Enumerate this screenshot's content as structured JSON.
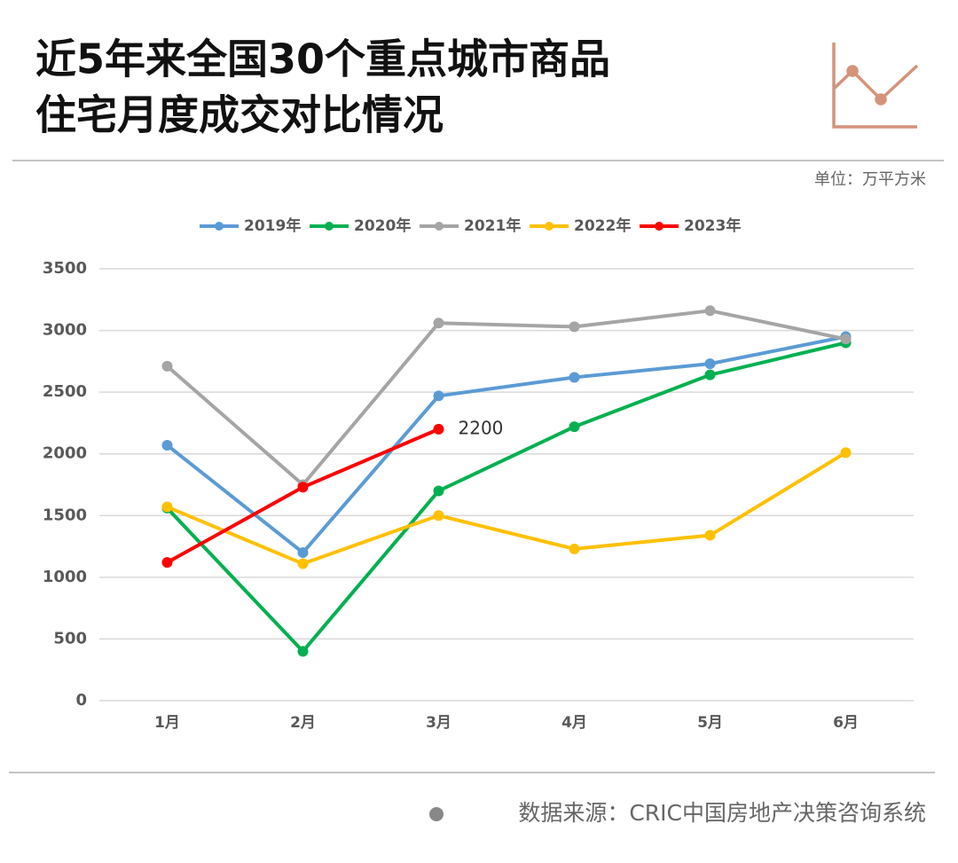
{
  "chart_data": {
    "type": "line",
    "title": [
      "近5年来全国30个重点城市商品",
      "住宅月度成交对比情况"
    ],
    "unit": "单位：万平方米",
    "source": "数据来源：CRIC中国房地产决策咨询系统",
    "categories": [
      "1月",
      "2月",
      "3月",
      "4月",
      "5月",
      "6月"
    ],
    "series": [
      {
        "name": "2019年",
        "color": "#5b9bd5",
        "values": [
          2070,
          1200,
          2470,
          2620,
          2730,
          2950
        ]
      },
      {
        "name": "2020年",
        "color": "#00b050",
        "values": [
          1560,
          400,
          1700,
          2220,
          2640,
          2900
        ]
      },
      {
        "name": "2021年",
        "color": "#a5a5a5",
        "values": [
          2710,
          1750,
          3060,
          3030,
          3160,
          2930
        ]
      },
      {
        "name": "2022年",
        "color": "#ffc000",
        "values": [
          1570,
          1110,
          1500,
          1230,
          1340,
          2010
        ]
      },
      {
        "name": "2023年",
        "color": "#ff0000",
        "values": [
          1120,
          1730,
          2200,
          null,
          null,
          null
        ]
      }
    ],
    "ylim": [
      0,
      3500
    ],
    "yticks": [
      0,
      500,
      1000,
      1500,
      2000,
      2500,
      3000,
      3500
    ],
    "grid": true
  }
}
